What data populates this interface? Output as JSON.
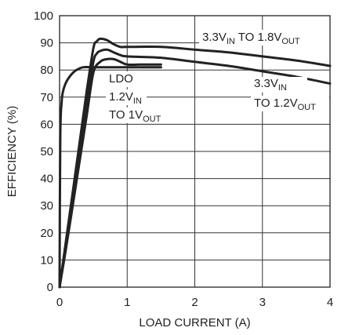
{
  "chart_data": {
    "type": "line",
    "xlabel": "LOAD CURRENT (A)",
    "ylabel": "EFFICIENCY (%)",
    "xlim": [
      0,
      4
    ],
    "ylim": [
      0,
      100
    ],
    "xticks": [
      0,
      1,
      2,
      3,
      4
    ],
    "yticks": [
      0,
      10,
      20,
      30,
      40,
      50,
      60,
      70,
      80,
      90,
      100
    ],
    "grid": true,
    "series": [
      {
        "x": [
          0,
          0.1,
          0.2,
          0.3,
          0.4,
          0.5,
          0.55,
          0.6,
          0.7,
          0.8,
          0.9,
          1.0,
          1.5,
          2.0,
          2.5,
          3.0,
          3.5,
          4.0
        ],
        "y": [
          0,
          18,
          36,
          54,
          72,
          88,
          90.5,
          91.5,
          91,
          89.5,
          88.5,
          88.5,
          88.5,
          87.5,
          86.5,
          85,
          83.5,
          81.5
        ]
      },
      {
        "x": [
          0,
          0.1,
          0.2,
          0.3,
          0.4,
          0.5,
          0.55,
          0.6,
          0.7,
          0.8,
          0.9,
          1.0,
          1.5,
          2.0,
          2.5,
          3.0,
          3.5,
          4.0
        ],
        "y": [
          0,
          17,
          34,
          51,
          68,
          83,
          86,
          87,
          87.5,
          86.5,
          85.5,
          85,
          84.5,
          83,
          81.5,
          79.5,
          77.5,
          75
        ]
      },
      {
        "x": [
          0,
          0.1,
          0.2,
          0.3,
          0.4,
          0.5,
          0.6,
          0.7,
          0.8,
          0.9,
          1.0,
          1.2,
          1.5
        ],
        "y": [
          0,
          15,
          31,
          47,
          63,
          79,
          83,
          84,
          84,
          83,
          82,
          82,
          82
        ]
      },
      {
        "x": [
          0,
          0.01,
          0.03,
          0.05,
          0.08,
          0.12,
          0.18,
          0.25,
          0.35,
          0.5,
          0.7,
          1.0,
          1.5
        ],
        "y": [
          0,
          55,
          68,
          72,
          74.5,
          76.5,
          78.5,
          80,
          81,
          81,
          81,
          81,
          81
        ]
      }
    ],
    "annotations": [
      {
        "parts": [
          {
            "t": "3.3V"
          },
          {
            "t": "IN",
            "sub": true
          },
          {
            "t": " TO 1.8V"
          },
          {
            "t": "OUT",
            "sub": true
          }
        ]
      },
      {
        "parts": [
          {
            "t": "3.3V"
          },
          {
            "t": "IN",
            "sub": true
          }
        ]
      },
      {
        "parts": [
          {
            "t": "TO 1.2V"
          },
          {
            "t": "OUT",
            "sub": true
          }
        ]
      },
      {
        "parts": [
          {
            "t": "LDO"
          }
        ]
      },
      {
        "parts": [
          {
            "t": "1.2V"
          },
          {
            "t": "IN",
            "sub": true
          }
        ]
      },
      {
        "parts": [
          {
            "t": "TO 1V"
          },
          {
            "t": "OUT",
            "sub": true
          }
        ]
      }
    ]
  }
}
